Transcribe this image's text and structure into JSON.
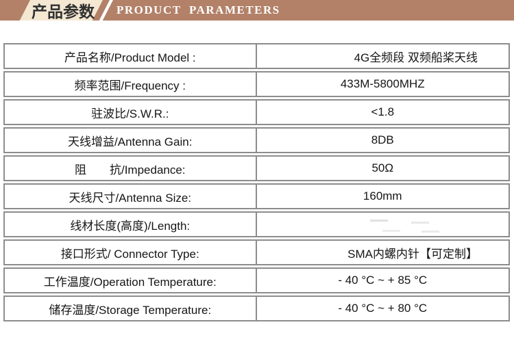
{
  "header": {
    "badge_label": "产品参数",
    "subtitle": "PRODUCT PARAMETERS",
    "colors": {
      "banner_bg": "#b28168",
      "badge_bg": "#f4e8d3",
      "badge_text": "#303030",
      "subtitle_text": "#ffffff"
    }
  },
  "table": {
    "border_color": "#8c8c8c",
    "text_color": "#151515",
    "rows": [
      {
        "label": "产品名称/Product Model :",
        "value": "4G全频段 双频船桨天线"
      },
      {
        "label": "频率范围/Frequency :",
        "value": "433M-5800MHZ"
      },
      {
        "label": "驻波比/S.W.R.:",
        "value": "<1.8"
      },
      {
        "label": "天线增益/Antenna Gain:",
        "value": "8DB"
      },
      {
        "label": "阻　　抗/Impedance:",
        "value": "50Ω"
      },
      {
        "label": "天线尺寸/Antenna Size:",
        "value": "160mm"
      },
      {
        "label": "线材长度(高度)/Length:",
        "value": ""
      },
      {
        "label": "接口形式/ Connector Type:",
        "value": "SMA内螺内针【可定制】"
      },
      {
        "label": "工作温度/Operation Temperature:",
        "value": "- 40 °C ~ + 85 °C"
      },
      {
        "label": "储存温度/Storage Temperature:",
        "value": "- 40 °C ~ + 80 °C"
      }
    ]
  }
}
